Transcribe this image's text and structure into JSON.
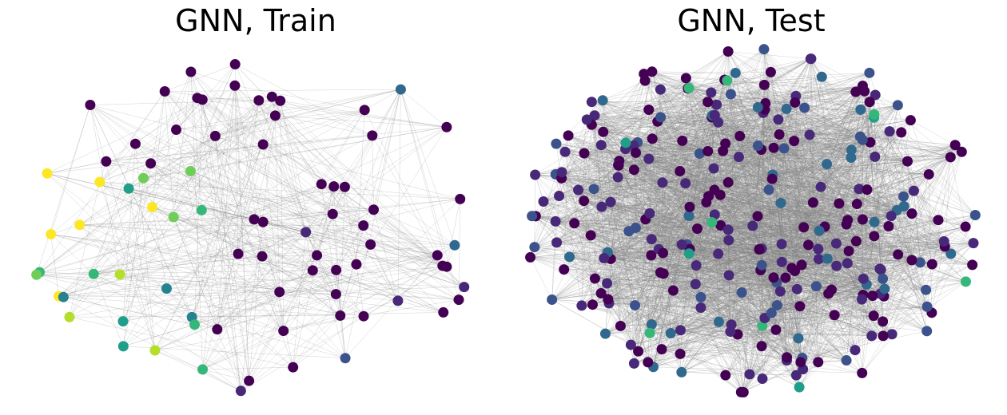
{
  "panels": [
    {
      "id": "train",
      "title": "GNN, Train",
      "seed": 11,
      "node_count": 80,
      "edge_density": 0.16,
      "bounds": [
        30,
        60,
        610,
        495
      ],
      "cluster": "single"
    },
    {
      "id": "test",
      "title": "GNN, Test",
      "seed": 29,
      "node_count": 300,
      "edge_density": 0.08,
      "bounds": [
        650,
        60,
        1230,
        495
      ],
      "cluster": "double"
    }
  ],
  "colors": {
    "edge": "#808080",
    "palette": [
      "#440154",
      "#482878",
      "#3b528b",
      "#31688e",
      "#26828e",
      "#1f9e89",
      "#35b779",
      "#6ece58",
      "#b5de2b",
      "#fde725"
    ]
  }
}
